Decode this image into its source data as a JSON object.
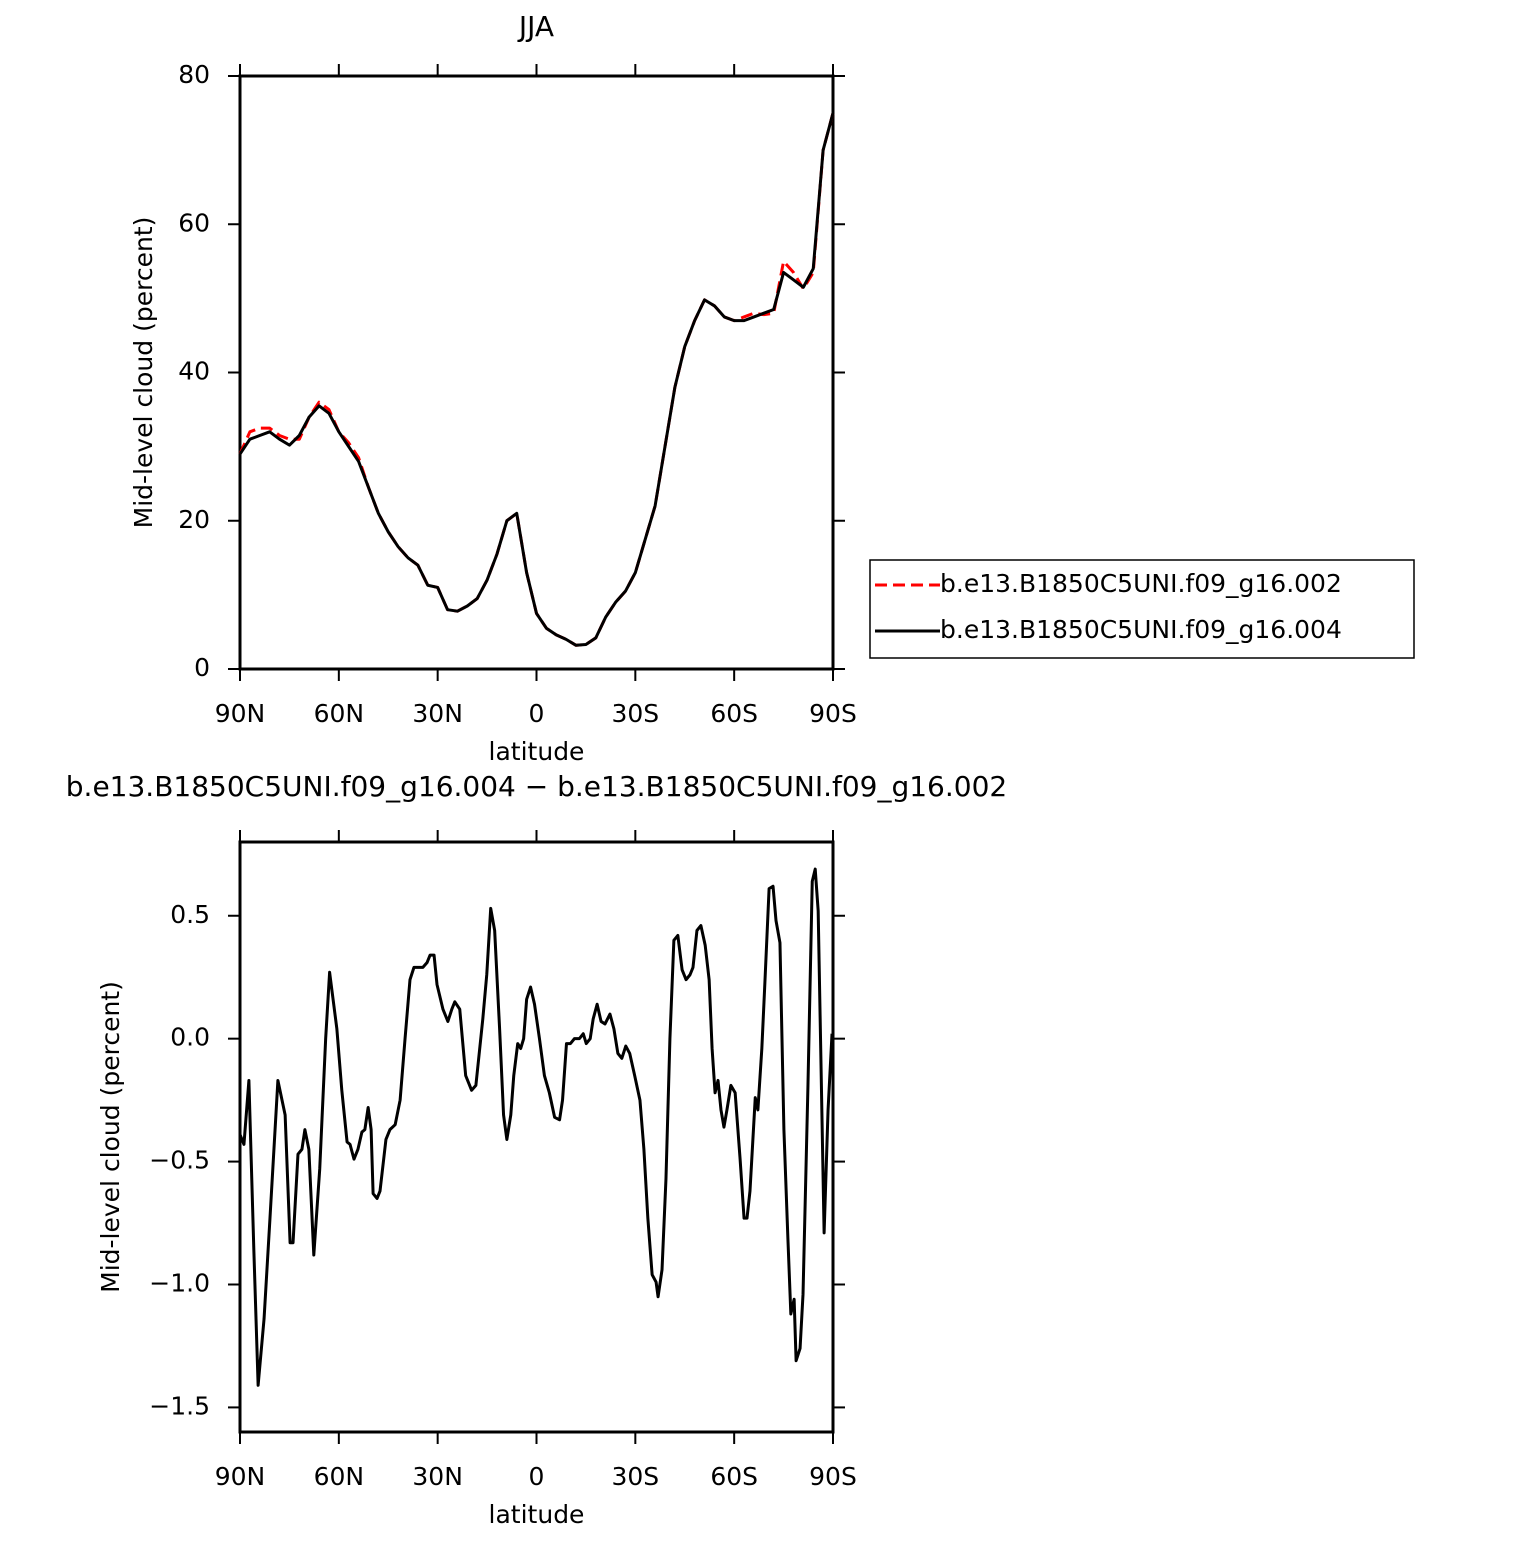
{
  "chart_data": [
    {
      "type": "line",
      "title": "JJA",
      "xlabel": "latitude",
      "ylabel": "Mid-level cloud (percent)",
      "x": [
        90,
        87,
        84,
        81,
        78,
        75,
        72,
        69,
        66,
        63,
        60,
        57,
        54,
        51,
        48,
        45,
        42,
        39,
        36,
        33,
        30,
        27,
        24,
        21,
        18,
        15,
        12,
        9,
        6,
        3,
        0,
        -3,
        -6,
        -9,
        -12,
        -15,
        -18,
        -21,
        -24,
        -27,
        -30,
        -33,
        -36,
        -39,
        -42,
        -45,
        -48,
        -51,
        -54,
        -57,
        -60,
        -63,
        -66,
        -69,
        -72,
        -75,
        -78,
        -81,
        -84,
        -87,
        -90
      ],
      "series": [
        {
          "name": "b.e13.B1850C5UNI.f09_g16.002",
          "color": "#ff0000",
          "style": "dashed",
          "values": [
            29,
            32,
            32.5,
            32.5,
            31.5,
            31,
            31,
            34,
            36,
            35,
            32,
            30.5,
            28.5,
            24.5,
            21,
            18.5,
            16.5,
            15,
            14,
            11.3,
            11,
            8,
            7.8,
            8.5,
            9.5,
            12,
            15.5,
            20,
            21,
            13,
            7.5,
            5.5,
            4.6,
            4,
            3.2,
            3.3,
            4.2,
            7,
            9,
            10.5,
            13,
            17.5,
            22,
            30,
            38,
            43.5,
            47,
            49.8,
            49,
            47.5,
            47,
            47.5,
            48,
            47.8,
            48,
            55,
            53.5,
            51.3,
            53.5,
            70,
            75
          ]
        },
        {
          "name": "b.e13.B1850C5UNI.f09_g16.004",
          "color": "#000000",
          "style": "solid",
          "values": [
            29,
            31,
            31.5,
            32,
            31,
            30.2,
            31.5,
            34,
            35.5,
            34.5,
            32,
            30,
            28,
            24.5,
            21,
            18.5,
            16.5,
            15,
            14,
            11.3,
            11,
            8,
            7.8,
            8.5,
            9.5,
            12,
            15.5,
            20,
            21,
            13,
            7.5,
            5.5,
            4.6,
            4,
            3.2,
            3.3,
            4.2,
            7,
            9,
            10.5,
            13,
            17.5,
            22,
            30,
            38,
            43.5,
            47,
            49.8,
            49,
            47.5,
            47,
            47,
            47.5,
            48,
            48.5,
            53.5,
            52.5,
            51.5,
            54,
            70,
            75
          ]
        }
      ],
      "xlim": [
        90,
        -90
      ],
      "xticks": [
        {
          "value": 90,
          "label": "90N"
        },
        {
          "value": 60,
          "label": "60N"
        },
        {
          "value": 30,
          "label": "30N"
        },
        0,
        {
          "value": -30,
          "label": "30S"
        },
        {
          "value": -60,
          "label": "60S"
        },
        {
          "value": -90,
          "label": "90S"
        }
      ],
      "ylim": [
        0,
        80
      ],
      "yticks": [
        0,
        20,
        40,
        60,
        80
      ],
      "legend": "right"
    },
    {
      "type": "line",
      "title": "b.e13.B1850C5UNI.f09_g16.004 − b.e13.B1850C5UNI.f09_g16.002",
      "xlabel": "latitude",
      "ylabel": "Mid-level cloud (percent)",
      "x": [
        90,
        88.8,
        87.3,
        85.8,
        84.5,
        82.7,
        80.9,
        78.5,
        76.3,
        74.8,
        73.9,
        72.4,
        71.2,
        70.3,
        69.1,
        67.6,
        65.8,
        64.0,
        62.8,
        60.6,
        59.1,
        57.5,
        56.6,
        55.4,
        54.2,
        53.0,
        52.1,
        51.1,
        50.2,
        49.6,
        48.4,
        47.5,
        45.7,
        44.5,
        42.9,
        41.4,
        39.9,
        38.4,
        37.2,
        36.0,
        34.5,
        33.2,
        32.3,
        31.1,
        30.2,
        28.4,
        26.9,
        25.7,
        24.8,
        23.3,
        21.5,
        19.7,
        18.4,
        16.3,
        15.1,
        13.9,
        12.7,
        11.2,
        10.0,
        9.0,
        7.8,
        6.9,
        5.7,
        4.8,
        3.9,
        3.0,
        1.8,
        0.6,
        -0.9,
        -2.4,
        -3.9,
        -5.5,
        -7.0,
        -7.9,
        -9.1,
        -10.3,
        -11.5,
        -13.0,
        -14.2,
        -15.1,
        -16.3,
        -17.2,
        -18.4,
        -19.6,
        -20.8,
        -22.3,
        -23.5,
        -24.7,
        -25.9,
        -27.1,
        -28.3,
        -29.8,
        -31.4,
        -32.6,
        -33.8,
        -35.1,
        -36.3,
        -36.9,
        -38.1,
        -39.3,
        -40.5,
        -41.7,
        -42.9,
        -44.2,
        -45.4,
        -46.6,
        -47.5,
        -48.7,
        -49.9,
        -51.2,
        -52.4,
        -53.3,
        -54.2,
        -55.1,
        -56.0,
        -56.9,
        -57.8,
        -59.0,
        -60.3,
        -61.8,
        -63.0,
        -63.9,
        -64.8,
        -66.4,
        -67.2,
        -68.4,
        -69.3,
        -70.6,
        -71.8,
        -72.7,
        -73.9,
        -75.1,
        -76.3,
        -77.2,
        -78.2,
        -78.8,
        -80.0,
        -80.9,
        -82.4,
        -83.7,
        -84.6,
        -85.5,
        -87.3,
        -88.5,
        -89.7
      ],
      "values": [
        -0.39,
        -0.43,
        -0.17,
        -0.86,
        -1.41,
        -1.14,
        -0.73,
        -0.17,
        -0.31,
        -0.83,
        -0.83,
        -0.47,
        -0.45,
        -0.37,
        -0.45,
        -0.88,
        -0.53,
        0.0,
        0.27,
        0.04,
        -0.21,
        -0.42,
        -0.43,
        -0.49,
        -0.45,
        -0.38,
        -0.37,
        -0.28,
        -0.37,
        -0.63,
        -0.65,
        -0.62,
        -0.41,
        -0.37,
        -0.35,
        -0.25,
        0.0,
        0.24,
        0.29,
        0.29,
        0.29,
        0.31,
        0.34,
        0.34,
        0.22,
        0.12,
        0.07,
        0.12,
        0.15,
        0.12,
        -0.15,
        -0.21,
        -0.19,
        0.08,
        0.26,
        0.53,
        0.44,
        0.04,
        -0.31,
        -0.41,
        -0.31,
        -0.15,
        -0.02,
        -0.04,
        0.0,
        0.16,
        0.21,
        0.14,
        0.0,
        -0.15,
        -0.22,
        -0.32,
        -0.33,
        -0.25,
        -0.02,
        -0.02,
        0.0,
        0.0,
        0.02,
        -0.02,
        0.0,
        0.08,
        0.14,
        0.07,
        0.06,
        0.1,
        0.04,
        -0.06,
        -0.08,
        -0.03,
        -0.06,
        -0.15,
        -0.25,
        -0.45,
        -0.73,
        -0.96,
        -0.99,
        -1.05,
        -0.94,
        -0.57,
        0.0,
        0.4,
        0.42,
        0.28,
        0.24,
        0.26,
        0.29,
        0.44,
        0.46,
        0.38,
        0.24,
        -0.04,
        -0.22,
        -0.17,
        -0.29,
        -0.36,
        -0.29,
        -0.19,
        -0.22,
        -0.49,
        -0.73,
        -0.73,
        -0.62,
        -0.24,
        -0.29,
        -0.04,
        0.22,
        0.61,
        0.62,
        0.48,
        0.39,
        -0.37,
        -0.81,
        -1.12,
        -1.06,
        -1.31,
        -1.26,
        -1.04,
        -0.19,
        0.64,
        0.69,
        0.52,
        -0.79,
        -0.29,
        0.02
      ],
      "color": "#000000",
      "xlim": [
        90,
        -90
      ],
      "xticks": [
        {
          "value": 90,
          "label": "90N"
        },
        {
          "value": 60,
          "label": "60N"
        },
        {
          "value": 30,
          "label": "30N"
        },
        0,
        {
          "value": -30,
          "label": "30S"
        },
        {
          "value": -60,
          "label": "60S"
        },
        {
          "value": -90,
          "label": "90S"
        }
      ],
      "ylim": [
        -1.6,
        0.8
      ],
      "yticks": [
        {
          "value": -1.5,
          "label": "−1.5"
        },
        {
          "value": -1,
          "label": "−1.0"
        },
        {
          "value": -0.5,
          "label": "−0.5"
        },
        {
          "value": 0,
          "label": "0.0"
        },
        0.5
      ]
    }
  ]
}
